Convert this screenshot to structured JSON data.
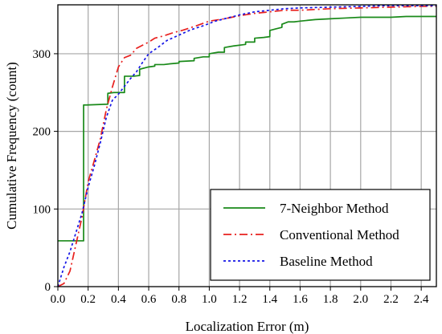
{
  "chart_data": {
    "type": "line",
    "title": "",
    "xlabel": "Localization Error (m)",
    "ylabel": "Cumulative Frequency (count)",
    "xlim": [
      0.0,
      2.5
    ],
    "ylim": [
      0,
      363
    ],
    "xticks": [
      "0.0",
      "0.2",
      "0.4",
      "0.6",
      "0.8",
      "1.0",
      "1.2",
      "1.4",
      "1.6",
      "1.8",
      "2.0",
      "2.2",
      "2.4"
    ],
    "xtick_values": [
      0.0,
      0.2,
      0.4,
      0.6,
      0.8,
      1.0,
      1.2,
      1.4,
      1.6,
      1.8,
      2.0,
      2.2,
      2.4
    ],
    "yticks": [
      "0",
      "100",
      "200",
      "300"
    ],
    "ytick_values": [
      0,
      100,
      200,
      300
    ],
    "grid": true,
    "legend_position": "bottom-right",
    "series": [
      {
        "name": "7-Neighbor Method",
        "color": "#1a8a1a",
        "dash": "solid",
        "step": true,
        "points": [
          [
            0.0,
            59
          ],
          [
            0.17,
            59
          ],
          [
            0.17,
            234
          ],
          [
            0.19,
            234
          ],
          [
            0.33,
            235
          ],
          [
            0.33,
            249
          ],
          [
            0.37,
            250
          ],
          [
            0.44,
            250
          ],
          [
            0.44,
            271
          ],
          [
            0.5,
            271
          ],
          [
            0.54,
            272
          ],
          [
            0.54,
            280
          ],
          [
            0.6,
            283
          ],
          [
            0.64,
            284
          ],
          [
            0.64,
            286
          ],
          [
            0.7,
            286
          ],
          [
            0.74,
            287
          ],
          [
            0.8,
            288
          ],
          [
            0.8,
            290
          ],
          [
            0.9,
            291
          ],
          [
            0.9,
            294
          ],
          [
            0.96,
            296
          ],
          [
            1.0,
            296
          ],
          [
            1.0,
            300
          ],
          [
            1.06,
            302
          ],
          [
            1.1,
            302
          ],
          [
            1.1,
            308
          ],
          [
            1.16,
            310
          ],
          [
            1.24,
            312
          ],
          [
            1.24,
            315
          ],
          [
            1.3,
            315
          ],
          [
            1.3,
            320
          ],
          [
            1.36,
            321
          ],
          [
            1.4,
            322
          ],
          [
            1.4,
            330
          ],
          [
            1.44,
            332
          ],
          [
            1.48,
            334
          ],
          [
            1.48,
            338
          ],
          [
            1.52,
            341
          ],
          [
            1.56,
            341
          ],
          [
            1.6,
            342
          ],
          [
            1.7,
            344
          ],
          [
            1.8,
            345
          ],
          [
            1.9,
            346
          ],
          [
            2.0,
            347
          ],
          [
            2.1,
            347
          ],
          [
            2.2,
            347
          ],
          [
            2.3,
            348
          ],
          [
            2.4,
            348
          ],
          [
            2.5,
            348
          ]
        ]
      },
      {
        "name": "Conventional Method",
        "color": "#e8201e",
        "dash": "10,4,2,4",
        "step": false,
        "points": [
          [
            0.0,
            0
          ],
          [
            0.04,
            4
          ],
          [
            0.08,
            20
          ],
          [
            0.12,
            55
          ],
          [
            0.16,
            90
          ],
          [
            0.2,
            135
          ],
          [
            0.24,
            162
          ],
          [
            0.28,
            190
          ],
          [
            0.32,
            228
          ],
          [
            0.36,
            257
          ],
          [
            0.4,
            283
          ],
          [
            0.44,
            295
          ],
          [
            0.48,
            298
          ],
          [
            0.52,
            307
          ],
          [
            0.56,
            311
          ],
          [
            0.6,
            315
          ],
          [
            0.64,
            320
          ],
          [
            0.7,
            323
          ],
          [
            0.76,
            327
          ],
          [
            0.82,
            330
          ],
          [
            0.9,
            335
          ],
          [
            1.0,
            342
          ],
          [
            1.1,
            345
          ],
          [
            1.2,
            349
          ],
          [
            1.3,
            352
          ],
          [
            1.4,
            354
          ],
          [
            1.5,
            356
          ],
          [
            1.6,
            356
          ],
          [
            1.7,
            357
          ],
          [
            1.8,
            358
          ],
          [
            2.0,
            359
          ],
          [
            2.2,
            360
          ],
          [
            2.4,
            361
          ],
          [
            2.5,
            361
          ]
        ]
      },
      {
        "name": "Baseline Method",
        "color": "#1414e6",
        "dash": "3,3",
        "step": false,
        "points": [
          [
            0.0,
            0
          ],
          [
            0.04,
            25
          ],
          [
            0.08,
            45
          ],
          [
            0.12,
            70
          ],
          [
            0.16,
            95
          ],
          [
            0.2,
            128
          ],
          [
            0.24,
            155
          ],
          [
            0.28,
            185
          ],
          [
            0.32,
            218
          ],
          [
            0.36,
            240
          ],
          [
            0.4,
            248
          ],
          [
            0.44,
            258
          ],
          [
            0.48,
            268
          ],
          [
            0.52,
            277
          ],
          [
            0.56,
            289
          ],
          [
            0.6,
            300
          ],
          [
            0.66,
            308
          ],
          [
            0.72,
            317
          ],
          [
            0.8,
            324
          ],
          [
            0.88,
            331
          ],
          [
            0.96,
            336
          ],
          [
            1.04,
            342
          ],
          [
            1.12,
            346
          ],
          [
            1.2,
            350
          ],
          [
            1.3,
            354
          ],
          [
            1.4,
            356
          ],
          [
            1.5,
            358
          ],
          [
            1.6,
            359
          ],
          [
            1.8,
            360
          ],
          [
            2.0,
            361
          ],
          [
            2.2,
            362
          ],
          [
            2.5,
            362
          ]
        ]
      }
    ]
  }
}
